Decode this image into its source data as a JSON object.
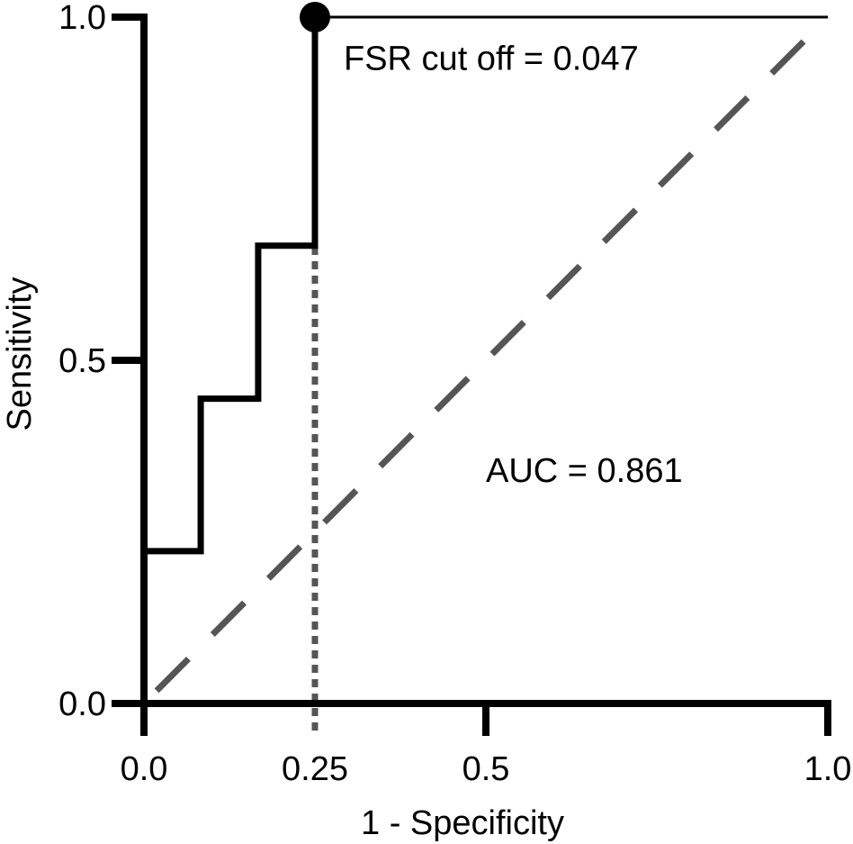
{
  "chart_data": {
    "type": "line",
    "title": "",
    "xlabel": "1 - Specificity",
    "ylabel": "Sensitivity",
    "xlim": [
      0,
      1
    ],
    "ylim": [
      0,
      1
    ],
    "x_ticks": [
      {
        "value": 0,
        "label": "0.0"
      },
      {
        "value": 0.25,
        "label": "0.25"
      },
      {
        "value": 0.5,
        "label": "0.5"
      },
      {
        "value": 1,
        "label": "1.0"
      }
    ],
    "y_ticks": [
      {
        "value": 0,
        "label": "0.0"
      },
      {
        "value": 0.5,
        "label": "0.5"
      },
      {
        "value": 1,
        "label": "1.0"
      }
    ],
    "grid": false,
    "legend": "none",
    "series": [
      {
        "style": "solid",
        "color": "#000000",
        "x": [
          0,
          0,
          0.083,
          0.083,
          0.167,
          0.167,
          0.25,
          0.25,
          1
        ],
        "y": [
          0,
          0.222,
          0.222,
          0.444,
          0.444,
          0.667,
          0.667,
          1,
          1
        ]
      }
    ],
    "reference_line": {
      "style": "dashed",
      "color": "#555555",
      "x": [
        0,
        1
      ],
      "y": [
        0,
        1
      ]
    },
    "cutoff_line": {
      "style": "dotted",
      "color": "#555555",
      "x": 0.25
    },
    "cutoff_point": {
      "x": 0.25,
      "y": 1,
      "color": "#000000"
    },
    "annotations": [
      {
        "id": "cutoff",
        "text": "FSR cut off = 0.047",
        "x": 0.3,
        "y": 0.94
      },
      {
        "id": "auc",
        "text": "AUC = 0.861",
        "x": 0.5,
        "y": 0.34
      }
    ]
  }
}
